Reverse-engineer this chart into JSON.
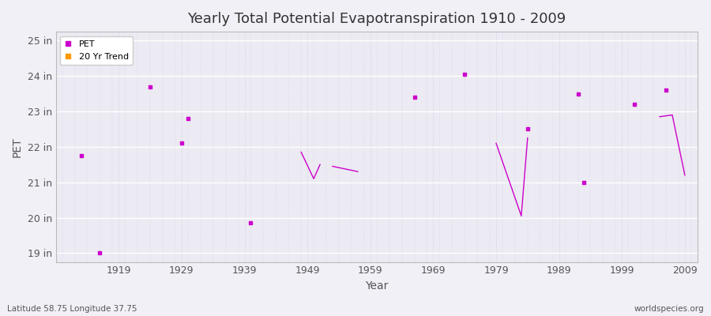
{
  "title": "Yearly Total Potential Evapotranspiration 1910 - 2009",
  "xlabel": "Year",
  "ylabel": "PET",
  "subtitle_left": "Latitude 58.75 Longitude 37.75",
  "subtitle_right": "worldspecies.org",
  "background_color": "#f2f0f7",
  "plot_bg_color": "#eceaf2",
  "grid_color": "#d8d4e8",
  "ylim": [
    18.75,
    25.25
  ],
  "xlim": [
    1909,
    2011
  ],
  "yticks": [
    19,
    20,
    21,
    22,
    23,
    24,
    25
  ],
  "ytick_labels": [
    "19 in",
    "20 in",
    "21 in",
    "22 in",
    "23 in",
    "24 in",
    "25 in"
  ],
  "xticks": [
    1919,
    1929,
    1939,
    1949,
    1959,
    1969,
    1979,
    1989,
    1999,
    2009
  ],
  "pet_color": "#cc00cc",
  "trend_color": "#ff9900",
  "pet_data": [
    [
      1913,
      21.75
    ],
    [
      1916,
      19.0
    ],
    [
      1924,
      23.7
    ],
    [
      1929,
      22.1
    ],
    [
      1930,
      22.8
    ],
    [
      1940,
      19.85
    ],
    [
      1966,
      23.4
    ],
    [
      1974,
      24.05
    ],
    [
      1984,
      22.5
    ],
    [
      1992,
      23.5
    ],
    [
      1993,
      21.0
    ],
    [
      2001,
      23.2
    ],
    [
      2006,
      23.6
    ]
  ],
  "trend_segments": [
    [
      [
        1948,
        21.85
      ],
      [
        1950,
        21.1
      ],
      [
        1951,
        21.5
      ]
    ],
    [
      [
        1953,
        21.45
      ],
      [
        1957,
        21.3
      ]
    ],
    [
      [
        1979,
        22.1
      ],
      [
        1983,
        20.05
      ],
      [
        1984,
        22.25
      ]
    ],
    [
      [
        2005,
        22.85
      ],
      [
        2007,
        22.9
      ],
      [
        2009,
        21.2
      ]
    ]
  ],
  "legend_pet_label": "PET",
  "legend_trend_label": "20 Yr Trend"
}
